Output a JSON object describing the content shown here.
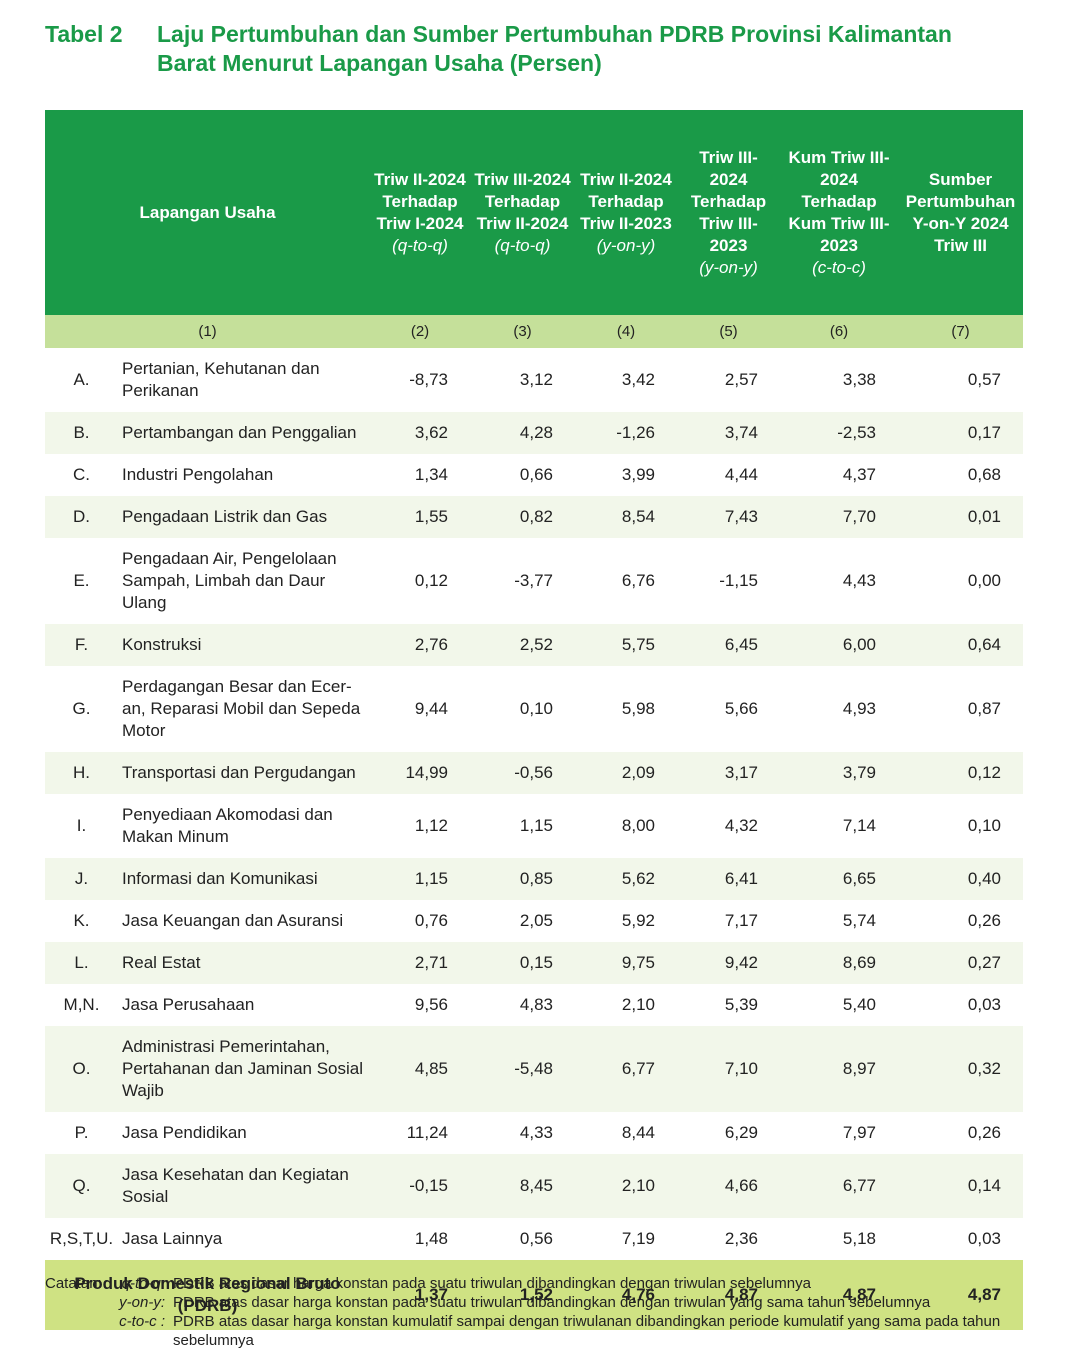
{
  "title": {
    "label": "Tabel 2",
    "text": "Laju Pertumbuhan dan Sumber Pertumbuhan PDRB Provinsi Kalimantan Barat Menurut Lapangan Usaha (Persen)"
  },
  "table": {
    "header": [
      {
        "text": "Lapangan Usaha",
        "note": null
      },
      {
        "text": "Triw II-2024 Terhadap Triw I-2024",
        "note": "(q-to-q)"
      },
      {
        "text": "Triw III-2024 Terhadap Triw II-2024",
        "note": "(q-to-q)"
      },
      {
        "text": "Triw II-2024 Terhadap Triw II-2023",
        "note": "(y-on-y)"
      },
      {
        "text": "Triw III-2024 Terhadap Triw III-2023",
        "note": "(y-on-y)"
      },
      {
        "text": "Kum Triw III-2024 Terhadap Kum Triw III-2023",
        "note": "(c-to-c)"
      },
      {
        "text": "Sumber Pertumbuhan Y-on-Y 2024 Triw III",
        "note": null
      }
    ],
    "numbers": [
      "(1)",
      "(2)",
      "(3)",
      "(4)",
      "(5)",
      "(6)",
      "(7)"
    ],
    "rows": [
      {
        "code": "A.",
        "name": "Pertanian, Kehutanan dan Perikanan",
        "values": [
          "-8,73",
          "3,12",
          "3,42",
          "2,57",
          "3,38",
          "0,57"
        ]
      },
      {
        "code": "B.",
        "name": "Pertambangan dan Penggalian",
        "values": [
          "3,62",
          "4,28",
          "-1,26",
          "3,74",
          "-2,53",
          "0,17"
        ]
      },
      {
        "code": "C.",
        "name": "Industri Pengolahan",
        "values": [
          "1,34",
          "0,66",
          "3,99",
          "4,44",
          "4,37",
          "0,68"
        ]
      },
      {
        "code": "D.",
        "name": "Pengadaan Listrik dan Gas",
        "values": [
          "1,55",
          "0,82",
          "8,54",
          "7,43",
          "7,70",
          "0,01"
        ]
      },
      {
        "code": "E.",
        "name": "Pengadaan Air, Pengelolaan Sampah, Limbah dan Daur Ulang",
        "values": [
          "0,12",
          "-3,77",
          "6,76",
          "-1,15",
          "4,43",
          "0,00"
        ]
      },
      {
        "code": "F.",
        "name": "Konstruksi",
        "values": [
          "2,76",
          "2,52",
          "5,75",
          "6,45",
          "6,00",
          "0,64"
        ]
      },
      {
        "code": "G.",
        "name": "Perdagangan Besar dan Ecer-an, Reparasi Mobil dan Sepeda Motor",
        "values": [
          "9,44",
          "0,10",
          "5,98",
          "5,66",
          "4,93",
          "0,87"
        ]
      },
      {
        "code": "H.",
        "name": "Transportasi dan Pergudangan",
        "values": [
          "14,99",
          "-0,56",
          "2,09",
          "3,17",
          "3,79",
          "0,12"
        ]
      },
      {
        "code": "I.",
        "name": "Penyediaan Akomodasi dan Makan Minum",
        "values": [
          "1,12",
          "1,15",
          "8,00",
          "4,32",
          "7,14",
          "0,10"
        ]
      },
      {
        "code": "J.",
        "name": "Informasi dan Komunikasi",
        "values": [
          "1,15",
          "0,85",
          "5,62",
          "6,41",
          "6,65",
          "0,40"
        ]
      },
      {
        "code": "K.",
        "name": "Jasa Keuangan dan Asuransi",
        "values": [
          "0,76",
          "2,05",
          "5,92",
          "7,17",
          "5,74",
          "0,26"
        ]
      },
      {
        "code": "L.",
        "name": "Real Estat",
        "values": [
          "2,71",
          "0,15",
          "9,75",
          "9,42",
          "8,69",
          "0,27"
        ]
      },
      {
        "code": "M,N.",
        "name": "Jasa Perusahaan",
        "values": [
          "9,56",
          "4,83",
          "2,10",
          "5,39",
          "5,40",
          "0,03"
        ]
      },
      {
        "code": "O.",
        "name": "Administrasi Pemerintahan, Pertahanan dan Jaminan Sosial Wajib",
        "values": [
          "4,85",
          "-5,48",
          "6,77",
          "7,10",
          "8,97",
          "0,32"
        ]
      },
      {
        "code": "P.",
        "name": "Jasa Pendidikan",
        "values": [
          "11,24",
          "4,33",
          "8,44",
          "6,29",
          "7,97",
          "0,26"
        ]
      },
      {
        "code": "Q.",
        "name": "Jasa Kesehatan dan Kegiatan Sosial",
        "values": [
          "-0,15",
          "8,45",
          "2,10",
          "4,66",
          "6,77",
          "0,14"
        ]
      },
      {
        "code": "R,S,T,U.",
        "name": "Jasa Lainnya",
        "values": [
          "1,48",
          "0,56",
          "7,19",
          "2,36",
          "5,18",
          "0,03"
        ]
      }
    ],
    "total": {
      "name": "Produk Domestik Regional Bruto (PDRB)",
      "values": [
        "1,37",
        "1,52",
        "4,76",
        "4,87",
        "4,87",
        "4,87"
      ]
    }
  },
  "notes": {
    "label": "Catatan:",
    "items": [
      {
        "term": "q-to-q:",
        "text": "PDRB atas dasar harga konstan pada suatu triwulan dibandingkan dengan triwulan sebelumnya"
      },
      {
        "term": "y-on-y:",
        "text": "PDRB atas dasar harga konstan pada suatu triwulan dibandingkan dengan triwulan yang sama tahun sebelumnya"
      },
      {
        "term": "c-to-c :",
        "text": "PDRB atas dasar harga konstan kumulatif sampai dengan triwulanan dibandingkan periode kumulatif yang sama pada tahun sebelumnya"
      }
    ]
  }
}
